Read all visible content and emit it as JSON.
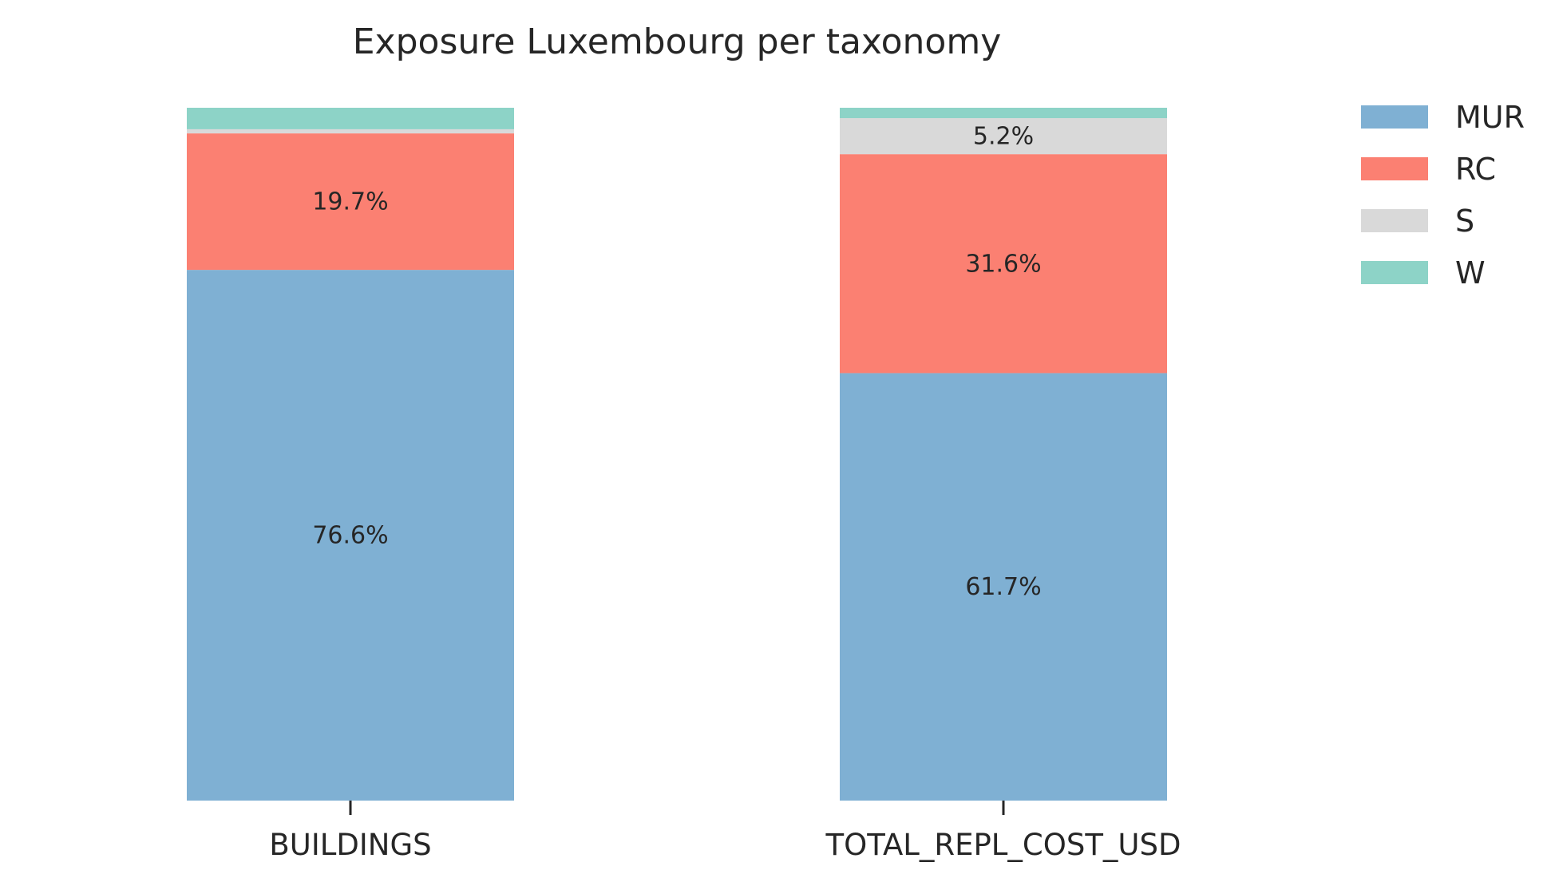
{
  "chart_data": {
    "type": "bar",
    "stacked": true,
    "normalized": true,
    "title": "Exposure Luxembourg per taxonomy",
    "xlabel": "",
    "ylabel": "",
    "ylim": [
      0,
      100
    ],
    "grid": false,
    "legend_position": "top-right",
    "categories": [
      "BUILDINGS",
      "TOTAL_REPL_COST_USD"
    ],
    "series": [
      {
        "name": "MUR",
        "color": "#7fb0d3",
        "values": [
          76.6,
          61.7
        ],
        "labels": [
          "76.6%",
          "61.7%"
        ]
      },
      {
        "name": "RC",
        "color": "#fb8072",
        "values": [
          19.7,
          31.6
        ],
        "labels": [
          "19.7%",
          "31.6%"
        ]
      },
      {
        "name": "S",
        "color": "#d9d9d9",
        "values": [
          0.6,
          5.2
        ],
        "labels": [
          "",
          "5.2%"
        ]
      },
      {
        "name": "W",
        "color": "#8dd3c7",
        "values": [
          3.1,
          1.5
        ],
        "labels": [
          "",
          ""
        ]
      }
    ]
  }
}
